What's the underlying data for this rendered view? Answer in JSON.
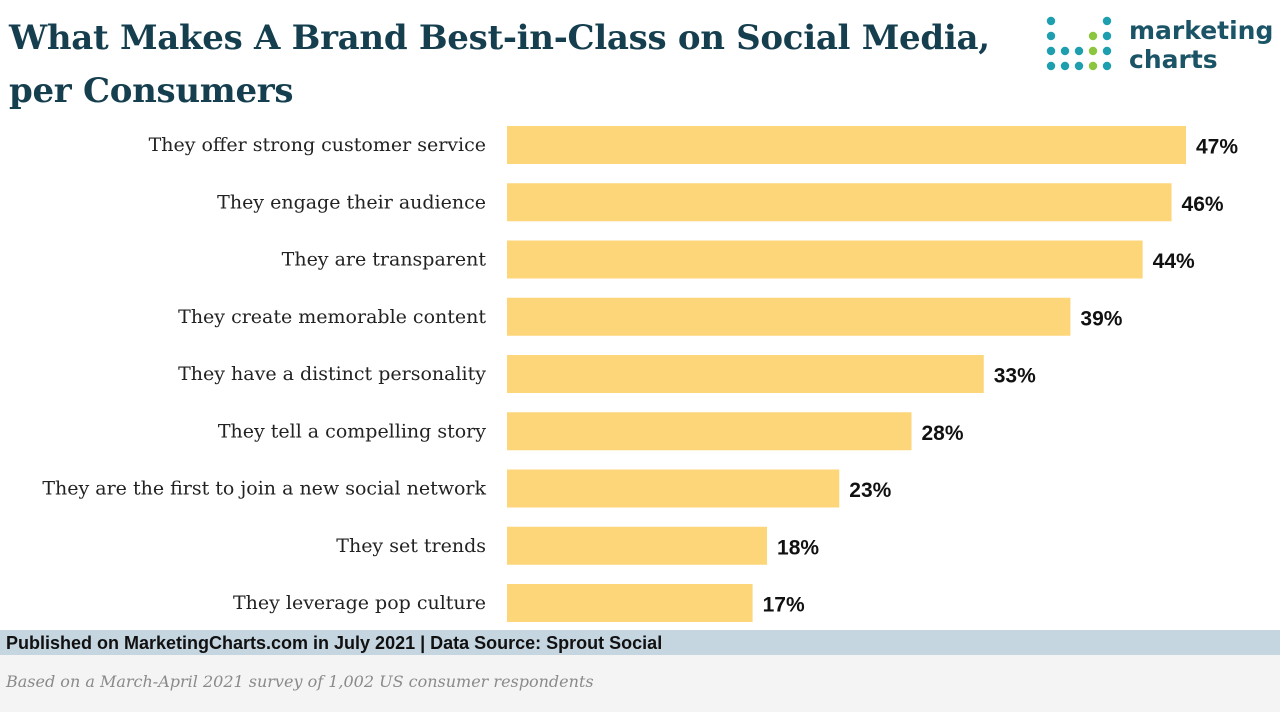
{
  "title": "What Makes A Brand Best-in-Class on Social Media, per Consumers",
  "logo": {
    "line1": "marketing",
    "line2": "charts"
  },
  "footer": {
    "published": "Published on MarketingCharts.com in July 2021 | Data Source: Sprout Social",
    "note": "Based on a March-April 2021 survey of 1,002 US consumer respondents"
  },
  "colors": {
    "bar": "#fdd67a",
    "title": "#153f4f",
    "footer_bar": "#c5d6e0",
    "logo_teal": "#1d9fb0",
    "logo_green": "#8cc63f"
  },
  "chart_data": {
    "type": "bar",
    "orientation": "horizontal",
    "categories": [
      "They offer strong customer service",
      "They engage their audience",
      "They are transparent",
      "They create memorable content",
      "They have a distinct personality",
      "They tell a compelling story",
      "They are the first to join a new social network",
      "They set trends",
      "They leverage pop culture"
    ],
    "values": [
      47,
      46,
      44,
      39,
      33,
      28,
      23,
      18,
      17
    ],
    "labels": [
      "47%",
      "46%",
      "44%",
      "39%",
      "33%",
      "28%",
      "23%",
      "18%",
      "17%"
    ],
    "unit": "%",
    "xlim": [
      0,
      47
    ],
    "grid": false,
    "legend": "none"
  }
}
